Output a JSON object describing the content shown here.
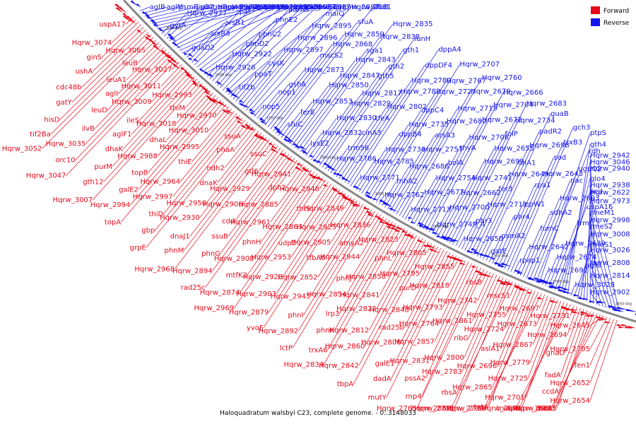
{
  "caption": "Haloquadratum walsbyi C23, complete genome. - 0..3148033",
  "legend": [
    {
      "name": "Forward",
      "color": "#e8091a"
    },
    {
      "name": "Reverse",
      "color": "#1414ee"
    }
  ],
  "colors": {
    "forward": "#e8091a",
    "reverse": "#1414ee",
    "backbone": "#888888"
  },
  "ticks": [
    "2050 kbp",
    "2000 kbp",
    "1950 kbp",
    "1900 kbp",
    "1850 kbp",
    "1800 kbp",
    "1750 kbp",
    "1700 kbp",
    "1650 kbp"
  ],
  "blue_labels": [
    "aglB",
    "aglM",
    "psmB",
    "ligB2",
    "traB",
    "gyrB",
    "Hqrw_2991",
    "Hqrw_2971",
    "Hqrw_2986",
    "gyrA",
    "Hqrw_2977",
    "sun",
    "Hqrw_2972",
    "Hqrw_2962",
    "Hqrw_2959",
    "aspC4",
    "Hqrw_2952",
    "Hqrw_2949",
    "guaD2",
    "arsR3",
    "arsR1",
    "pat",
    "phoU2",
    "mat",
    "Hqrw_2936",
    "Hqrw_2934",
    "Hqrw_2927",
    "Hqrw_2926",
    "Hqrw_2922",
    "phnD2",
    "phnC2",
    "phnE2",
    "parA3",
    "cyaB",
    "nadE2",
    "ogg",
    "tif2b",
    "ppaT",
    "cysK",
    "Hqrw_2897",
    "Hqrw_2896",
    "Hqrw_2895",
    "malQ",
    "Hqrw_2887",
    "Hqrw_2881",
    "nop5",
    "nop1",
    "gshA",
    "Hqrw_2873",
    "mscS2",
    "Hqrw_2868",
    "Hqrw_2859",
    "sfuA",
    "sfuB",
    "sfuC",
    "fer8",
    "Hqrw_2853",
    "Hqrw_2850",
    "Hqrw_2847",
    "Hqrw_2843",
    "sga1",
    "Hqrw_2838",
    "Hqrw_2835",
    "lysE2",
    "Hqrw_2832",
    "Hqrw_2830",
    "Hqrw_2829",
    "Hqrw_2817",
    "gth5",
    "gth2",
    "gth1",
    "iunH",
    "Hqrw_2786",
    "trm56",
    "cinA3",
    "tfeA",
    "Hqrw_2802",
    "Hqrw_2782",
    "Hqrw_2780",
    "dppDF4",
    "dppA4",
    "Hqrw_2771",
    "Hqrw_2785",
    "Hqrw_2736",
    "dppB4",
    "Hqrw_2735",
    "dppC4",
    "Hqrw_2727",
    "Hqrw_2767",
    "Hqrw_2707",
    "Hqrw_2762",
    "rnhA2",
    "Hqrw_2686",
    "Hqrw_2757",
    "arsA3",
    "Hqrw_2680",
    "Hqrw_2719",
    "Hqrw_2679",
    "Hqrw_2760",
    "Hqrw_2713",
    "Hqrw_2677",
    "Hqrw_2754",
    "bolA",
    "thyA",
    "Hqrw_2706",
    "Hqrw_2672",
    "Hqrw_2704",
    "Hqrw_2666",
    "Hqrw_2749_A",
    "Hqrw_2700",
    "Hqrw_2662",
    "Hqrw_2741",
    "Hqrw_2699",
    "Hqrw_2655",
    "folP",
    "Hqrw_2734",
    "Hqrw_2683",
    "Hqrw_2650",
    "phr3",
    "Hqrw_2711",
    "fer3",
    "Hqrw_2649",
    "folA1",
    "Hqrw_2698",
    "padR2",
    "guaB",
    "gatE",
    "psmA2",
    "phr4",
    "lepW1",
    "rpa1",
    "Hqrw_2643",
    "sod",
    "trxB3",
    "gch3",
    "rpap1",
    "Hqrw_2642",
    "fumC",
    "sdhA2",
    "Hqrw_2693",
    "nac",
    "ugpQ2",
    "rdh",
    "ptpS",
    "Hqrw_2692",
    "Hqrw_2674",
    "Hqrw_2639",
    "trmI",
    "uspA16",
    "acd",
    "glo4",
    "Hqrw_3046",
    "gth4",
    "Hqrw_3028",
    "aglG",
    "Hqrw_3026",
    "Hqrw_3008",
    "Hqrw_2998",
    "Hqrw_2973",
    "Hqrw_2938",
    "Hqrw_2940",
    "Hqrw_2942",
    "Hqrw_2902",
    "Hqrw_2814",
    "Hqrw_2808",
    "rmeS1",
    "rmeS2",
    "rmeM1",
    "Hqrw_2622"
  ],
  "red_labels": [
    "uspA17",
    "Hqrw_3074",
    "ginS",
    "ushA",
    "cdc48b",
    "gatY",
    "hisD",
    "tif2Ba",
    "Hqrw_3052",
    "Hqrw_3065",
    "leuB",
    "leuA1",
    "aglI",
    "leuD",
    "ilvB",
    "Hqrw_3035",
    "orc10",
    "Hqrw_3047",
    "Hqrw_3027",
    "Hqrw_3011",
    "Hqrw_3009",
    "ileS",
    "aglF1",
    "dhaK",
    "purM",
    "gth12",
    "Hqrw_3007",
    "Hqrw_2993",
    "thiM",
    "Hqrw_3018",
    "dhaL",
    "Hqrw_2988",
    "topB",
    "galE2",
    "Hqrw_2994",
    "topA",
    "Hqrw_2970",
    "Hqrw_3010",
    "Hqrw_2995",
    "thiE",
    "Hqrw_2964",
    "Hqrw_2997",
    "thiD",
    "gbp",
    "grpE",
    "ssuA",
    "phaA",
    "ndh2",
    "dnaK",
    "Hqrw_2950",
    "Hqrw_2930",
    "dnaJ1",
    "phnM",
    "Hqrw_2968",
    "ssuC",
    "gtl6",
    "Hqrw_2929",
    "Hqrw_2906",
    "cdd",
    "ssuB",
    "phnG",
    "Hqrw_2894",
    "rad25c",
    "Hqrw_2941",
    "dph2",
    "Hqrw_2885",
    "Hqrw_2961",
    "phnH",
    "Hqrw_2908",
    "mtfK2",
    "Hqrw_2874",
    "Hqrw_2969",
    "Hqrw_2948",
    "thiS",
    "Hqrw_2863",
    "udp2",
    "Hqrw_2953",
    "Hqrw_2920",
    "Hqrw_2903",
    "Hqrw_2879",
    "yvoF",
    "Hqrw_2849",
    "Hqrw_2925",
    "Hqrw_2905",
    "tfbA6",
    "Hqrw_2852",
    "Hqrw_2943",
    "phnI",
    "Hqrw_2892",
    "lctP",
    "Hqrw_2836",
    "amyA2",
    "Hqrw_2944",
    "phnJ",
    "Hqrw_2854",
    "lrp3",
    "phnK",
    "trxA6",
    "Hqrw_2834",
    "Hqrw_2823",
    "phnL",
    "Hqrw_2858",
    "Hqrw_2841",
    "Hqrw_2822",
    "Hqrw_2812",
    "Hqrw_2860",
    "Hqrw_2842",
    "tbpA",
    "Hqrw_2805",
    "Hqrw_2795",
    "purD",
    "Hqrw_2848",
    "rad25b",
    "Hqrw_2806",
    "galE1",
    "dadA",
    "mutY",
    "Hqrw_2855",
    "Hqrw_2818",
    "Hqrw_2793",
    "Hqrw_2764",
    "Hqrw_2857",
    "Hqrw_2831",
    "pssA2",
    "rnp4",
    "Hqrw_2765",
    "rbsB",
    "Hqrw_2742",
    "Hqrw_2861",
    "ribG",
    "Hqrw_2800",
    "Hqrw_2783",
    "rbsA",
    "Hqrw_2712",
    "Hqrw_2862",
    "mscS1",
    "Hqrw_2755",
    "Hqrw_2724",
    "aslA1",
    "Hqrw_2696",
    "Hqrw_2865",
    "tatA",
    "Hqrw_2759",
    "Hqrw_2730",
    "Hqrw_2697",
    "Hqrw_2673",
    "Hqrw_2867",
    "Hqrw_2779",
    "Hqrw_2725",
    "Hqrw_2701",
    "Hqrw_2675",
    "apa",
    "trxA4",
    "Hqrw_2731",
    "Hqrw_2694",
    "gnaD",
    "fadA",
    "ccdA",
    "trxA5",
    "Hqrw_2703",
    "Hqrw_2681",
    "mce",
    "Hqrw_2645",
    "Hqrw_2705",
    "fen1",
    "Hqrw_2652",
    "Hqrw_2654"
  ]
}
